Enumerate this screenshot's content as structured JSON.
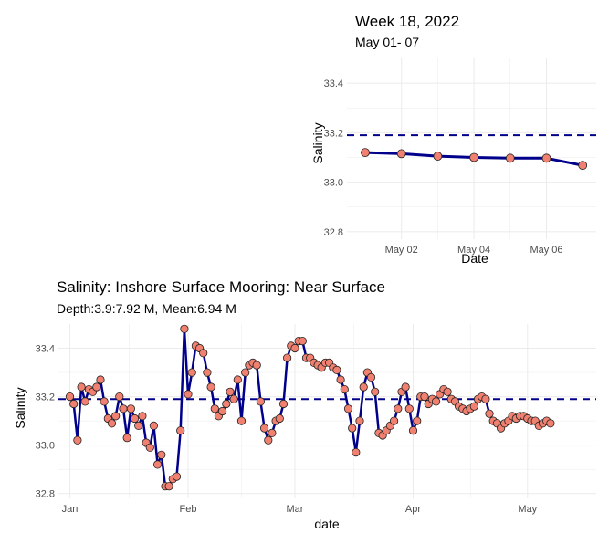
{
  "colors": {
    "line": "#00008B",
    "point_fill": "#F08070",
    "point_stroke": "#222222",
    "mean_line": "#00008B",
    "grid": "#EBEBEB"
  },
  "chart_data": [
    {
      "type": "line",
      "title": "Week 18, 2022",
      "subtitle": "May 01- 07",
      "xlabel": "Date",
      "ylabel": "Salinity",
      "x": [
        "2022-05-01",
        "2022-05-02",
        "2022-05-03",
        "2022-05-04",
        "2022-05-05",
        "2022-05-06",
        "2022-05-07"
      ],
      "x_ticks": [
        "May 02",
        "May 04",
        "May 06"
      ],
      "y_ticks": [
        "32.8",
        "33.0",
        "33.2",
        "33.4"
      ],
      "ylim": [
        32.77,
        33.5
      ],
      "values": [
        33.12,
        33.115,
        33.105,
        33.1,
        33.097,
        33.097,
        33.068
      ],
      "mean": 33.19,
      "grid": true
    },
    {
      "type": "line",
      "title": "Salinity: Inshore Surface Mooring: Near Surface",
      "subtitle": "Depth:3.9:7.92 M, Mean:6.94 M",
      "xlabel": "date",
      "ylabel": "Salinity",
      "x_ticks": [
        "Jan",
        "Feb",
        "Mar",
        "Apr",
        "May"
      ],
      "y_ticks": [
        "32.8",
        "33.0",
        "33.2",
        "33.4"
      ],
      "ylim": [
        32.78,
        33.5
      ],
      "x_range_days": [
        -3,
        138
      ],
      "mean": 33.19,
      "grid": true,
      "day_of_year": [
        0,
        1,
        2,
        3,
        4,
        5,
        6,
        7,
        8,
        9,
        10,
        11,
        12,
        13,
        14,
        15,
        16,
        17,
        18,
        19,
        20,
        21,
        22,
        23,
        24,
        25,
        26,
        27,
        28,
        29,
        30,
        31,
        32,
        33,
        34,
        35,
        36,
        37,
        38,
        39,
        40,
        41,
        42,
        43,
        44,
        45,
        46,
        47,
        48,
        49,
        50,
        51,
        52,
        53,
        54,
        55,
        56,
        57,
        58,
        59,
        60,
        61,
        62,
        63,
        64,
        65,
        66,
        67,
        68,
        69,
        70,
        71,
        72,
        73,
        74,
        75,
        76,
        77,
        78,
        79,
        80,
        81,
        82,
        83,
        84,
        85,
        86,
        87,
        88,
        89,
        90,
        91,
        92,
        93,
        94,
        95,
        96,
        97,
        98,
        99,
        100,
        101,
        102,
        103,
        104,
        105,
        106,
        107,
        108,
        109,
        110,
        111,
        112,
        113,
        114,
        115,
        116,
        117,
        118,
        119,
        120,
        121,
        122,
        123,
        124,
        125,
        126
      ],
      "values": [
        33.2,
        33.17,
        33.02,
        33.24,
        33.18,
        33.23,
        33.22,
        33.24,
        33.27,
        33.18,
        33.11,
        33.09,
        33.12,
        33.2,
        33.15,
        33.03,
        33.15,
        33.11,
        33.08,
        33.12,
        33.01,
        32.99,
        33.08,
        32.92,
        32.96,
        32.83,
        32.83,
        32.86,
        32.87,
        33.06,
        33.48,
        33.21,
        33.3,
        33.41,
        33.4,
        33.38,
        33.3,
        33.24,
        33.15,
        33.12,
        33.14,
        33.17,
        33.22,
        33.19,
        33.27,
        33.1,
        33.3,
        33.33,
        33.34,
        33.33,
        33.18,
        33.07,
        33.02,
        33.05,
        33.1,
        33.11,
        33.17,
        33.36,
        33.41,
        33.4,
        33.43,
        33.43,
        33.36,
        33.36,
        33.34,
        33.33,
        33.32,
        33.34,
        33.34,
        33.32,
        33.31,
        33.27,
        33.23,
        33.15,
        33.07,
        32.97,
        33.1,
        33.24,
        33.3,
        33.28,
        33.22,
        33.05,
        33.04,
        33.06,
        33.08,
        33.1,
        33.15,
        33.22,
        33.24,
        33.15,
        33.06,
        33.1,
        33.2,
        33.2,
        33.17,
        33.19,
        33.18,
        33.21,
        33.23,
        33.22,
        33.19,
        33.18,
        33.16,
        33.15,
        33.14,
        33.15,
        33.16,
        33.19,
        33.2,
        33.19,
        33.13,
        33.1,
        33.09,
        33.07,
        33.09,
        33.1,
        33.12,
        33.11,
        33.12,
        33.12,
        33.11,
        33.1,
        33.1,
        33.08,
        33.09,
        33.1,
        33.09
      ]
    }
  ]
}
